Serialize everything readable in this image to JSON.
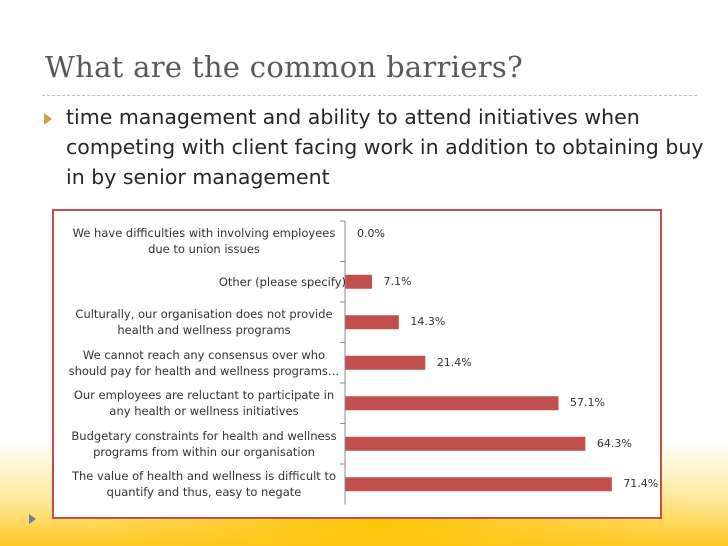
{
  "slide": {
    "title": "What are the common barriers?",
    "bullet": "time management and ability to attend initiatives when competing with client facing work in addition to obtaining buy in by senior management"
  },
  "colors": {
    "bar": "#c0504d",
    "frame": "#c0504d",
    "accent": "#f5b800"
  },
  "chart_data": {
    "type": "bar",
    "orientation": "horizontal",
    "title": "",
    "xlabel": "",
    "ylabel": "",
    "xlim": [
      0,
      80
    ],
    "grid": false,
    "categories": [
      {
        "lines": [
          "We have difficulties with involving employees",
          "due to union issues"
        ],
        "align": "center"
      },
      {
        "lines": [
          "Other (please specify)"
        ],
        "align": "right"
      },
      {
        "lines": [
          "Culturally, our organisation does not provide",
          "health and wellness programs"
        ],
        "align": "center"
      },
      {
        "lines": [
          "We cannot reach any consensus over who",
          "should pay for health and wellness programs…"
        ],
        "align": "center"
      },
      {
        "lines": [
          "Our employees are reluctant to participate in",
          "any health or wellness initiatives"
        ],
        "align": "center"
      },
      {
        "lines": [
          "Budgetary constraints for health and wellness",
          "programs from within our organisation"
        ],
        "align": "center"
      },
      {
        "lines": [
          "The value of health and wellness is difficult to",
          "quantify and thus, easy to negate"
        ],
        "align": "center"
      }
    ],
    "values": [
      0.0,
      7.1,
      14.3,
      21.4,
      57.1,
      64.3,
      71.4
    ],
    "value_labels": [
      "0.0%",
      "7.1%",
      "14.3%",
      "21.4%",
      "57.1%",
      "64.3%",
      "71.4%"
    ]
  }
}
